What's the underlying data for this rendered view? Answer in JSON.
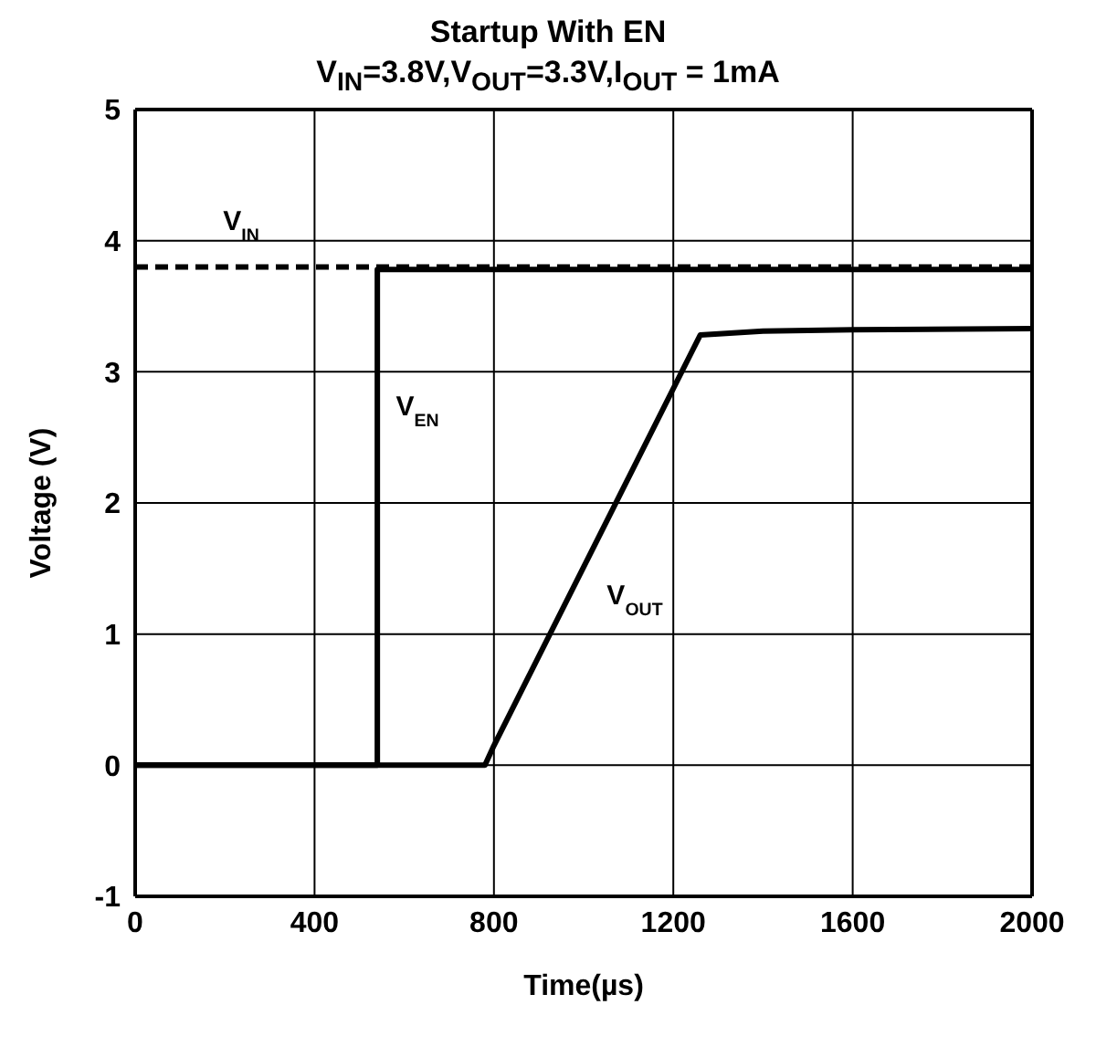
{
  "chart_data": {
    "type": "line",
    "title": "Startup With EN",
    "subtitle": "V$_{IN}$=3.8V,V$_{OUT}$=3.3V,I$_{OUT}$ = 1mA",
    "xlabel": "Time(µs)",
    "ylabel": "Voltage (V)",
    "xlim": [
      0,
      2000
    ],
    "xticks": [
      0,
      400,
      800,
      1200,
      1600,
      2000
    ],
    "ylim": [
      -1,
      5
    ],
    "yticks": [
      -1,
      0,
      1,
      2,
      3,
      4,
      5
    ],
    "grid": true,
    "legend": false,
    "series": [
      {
        "name": "V$_{IN}$",
        "color": "#000000",
        "line_style": "dashed",
        "x": [
          0,
          2000
        ],
        "values": [
          3.8,
          3.8
        ]
      },
      {
        "name": "V$_{EN}$",
        "color": "#000000",
        "line_style": "solid",
        "x": [
          0,
          540,
          540,
          2000
        ],
        "values": [
          0,
          0,
          3.78,
          3.78
        ]
      },
      {
        "name": "V$_{OUT}$",
        "color": "#000000",
        "line_style": "solid",
        "x": [
          0,
          780,
          800,
          1260,
          1400,
          1600,
          2000
        ],
        "values": [
          0,
          0,
          0.15,
          3.28,
          3.31,
          3.32,
          3.33
        ]
      }
    ]
  }
}
